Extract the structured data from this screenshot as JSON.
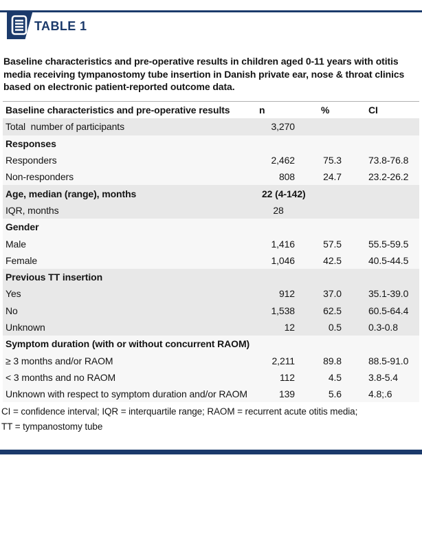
{
  "page": {
    "tag_label": "TABLE 1",
    "caption": "Baseline characteristics and pre-operative results in children aged 0-11 years with otitis media receiving tympanostomy tube insertion in Danish private ear, nose & throat clinics based on electronic patient-reported outcome data.",
    "footnote_lines": [
      "CI = confidence interval; IQR = interquartile range; RAOM = recurrent acute otitis media;",
      "TT = tympanostomy tube"
    ],
    "colors": {
      "brand_navy": "#1b3a6b",
      "band_gray": "#e8e8e8",
      "band_light": "#f7f7f7"
    },
    "icons": {
      "table_icon": "document-lines-icon"
    }
  },
  "table": {
    "header": {
      "label": "Baseline characteristics and pre-operative results",
      "n": "n",
      "pct": "%",
      "ci": "CI"
    },
    "rows": [
      {
        "label": "Total  number of participants",
        "n": "3,270",
        "pct": "",
        "ci": "",
        "bold": false,
        "shade": "gray"
      },
      {
        "label": "Responses",
        "n": "",
        "pct": "",
        "ci": "",
        "bold": true,
        "shade": "light"
      },
      {
        "label": "Responders",
        "n": "2,462",
        "pct": "75.3",
        "ci": "73.8-76.8",
        "bold": false,
        "shade": "light"
      },
      {
        "label": "Non-responders",
        "n": "808",
        "pct": "24.7",
        "ci": "23.2-26.2",
        "bold": false,
        "shade": "light"
      },
      {
        "label": "Age, median (range), months",
        "n": "22 (4-142)",
        "pct": "",
        "ci": "",
        "bold": true,
        "shade": "gray",
        "n_align": "left"
      },
      {
        "label": "IQR, months",
        "n": "28",
        "pct": "",
        "ci": "",
        "bold": false,
        "shade": "gray",
        "n_align": "center"
      },
      {
        "label": "Gender",
        "n": "",
        "pct": "",
        "ci": "",
        "bold": true,
        "shade": "light"
      },
      {
        "label": "Male",
        "n": "1,416",
        "pct": "57.5",
        "ci": "55.5-59.5",
        "bold": false,
        "shade": "light"
      },
      {
        "label": "Female",
        "n": "1,046",
        "pct": "42.5",
        "ci": "40.5-44.5",
        "bold": false,
        "shade": "light"
      },
      {
        "label": "Previous TT insertion",
        "n": "",
        "pct": "",
        "ci": "",
        "bold": true,
        "shade": "gray"
      },
      {
        "label": "Yes",
        "n": "912",
        "pct": "37.0",
        "ci": "35.1-39.0",
        "bold": false,
        "shade": "gray"
      },
      {
        "label": "No",
        "n": "1,538",
        "pct": "62.5",
        "ci": "60.5-64.4",
        "bold": false,
        "shade": "gray"
      },
      {
        "label": "Unknown",
        "n": "12",
        "pct": "0.5",
        "ci": "0.3-0.8",
        "bold": false,
        "shade": "gray"
      },
      {
        "label": "Symptom duration (with or without concurrent RAOM)",
        "n": "",
        "pct": "",
        "ci": "",
        "bold": true,
        "shade": "light"
      },
      {
        "label": "≥ 3 months and/or RAOM",
        "n": "2,211",
        "pct": "89.8",
        "ci": "88.5-91.0",
        "bold": false,
        "shade": "light"
      },
      {
        "label": "< 3 months and no RAOM",
        "n": "112",
        "pct": "4.5",
        "ci": "3.8-5.4",
        "bold": false,
        "shade": "light"
      },
      {
        "label": "Unknown with respect to symptom duration and/or RAOM",
        "n": "139",
        "pct": "5.6",
        "ci": "4.8;.6",
        "bold": false,
        "shade": "light"
      }
    ]
  }
}
